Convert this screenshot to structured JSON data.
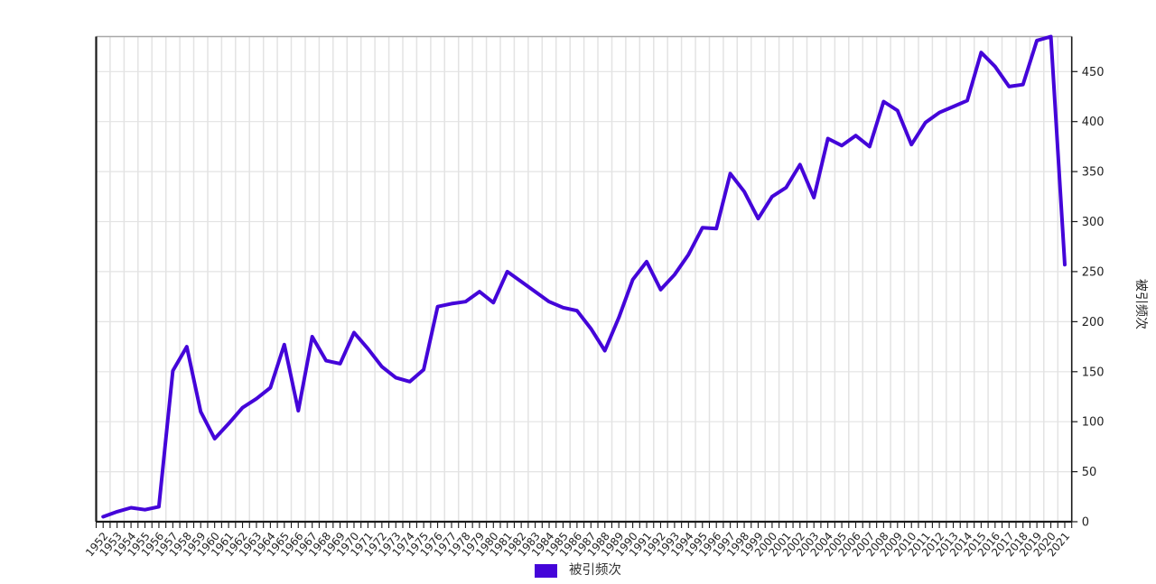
{
  "chart_data": {
    "type": "line",
    "title": "",
    "x": [
      "1952",
      "1953",
      "1954",
      "1955",
      "1956",
      "1957",
      "1958",
      "1959",
      "1960",
      "1961",
      "1962",
      "1963",
      "1964",
      "1965",
      "1966",
      "1967",
      "1968",
      "1969",
      "1970",
      "1971",
      "1972",
      "1973",
      "1974",
      "1975",
      "1976",
      "1977",
      "1978",
      "1979",
      "1980",
      "1981",
      "1982",
      "1983",
      "1984",
      "1985",
      "1986",
      "1987",
      "1988",
      "1989",
      "1990",
      "1991",
      "1992",
      "1993",
      "1994",
      "1995",
      "1996",
      "1997",
      "1998",
      "1999",
      "2000",
      "2001",
      "2002",
      "2003",
      "2004",
      "2005",
      "2006",
      "2007",
      "2008",
      "2009",
      "2010",
      "2011",
      "2012",
      "2013",
      "2014",
      "2015",
      "2016",
      "2017",
      "2018",
      "2019",
      "2020",
      "2021"
    ],
    "series": [
      {
        "name": "被引频次",
        "values": [
          5,
          10,
          14,
          12,
          15,
          151,
          175,
          110,
          83,
          98,
          114,
          123,
          134,
          177,
          111,
          185,
          161,
          158,
          189,
          173,
          155,
          144,
          140,
          152,
          215,
          218,
          220,
          230,
          219,
          250,
          240,
          230,
          220,
          214,
          211,
          193,
          171,
          204,
          242,
          260,
          232,
          247,
          267,
          294,
          293,
          348,
          330,
          303,
          325,
          334,
          357,
          324,
          383,
          376,
          386,
          375,
          420,
          411,
          377,
          399,
          409,
          415,
          421,
          469,
          455,
          435,
          437,
          481,
          485,
          257
        ]
      }
    ],
    "xlabel": "",
    "ylabel": "被引频次",
    "yticks": [
      0,
      50,
      100,
      150,
      200,
      250,
      300,
      350,
      400,
      450
    ],
    "ylim": [
      0,
      485
    ],
    "grid": true,
    "legend_position": "bottom-center",
    "legend": [
      "被引频次"
    ]
  },
  "colors": {
    "series": "#4405d9",
    "grid": "#e3e3e3",
    "axis": "#1a1a1a",
    "top_border": "#a8a8a8",
    "tick_label": "#222222",
    "legend_text": "#333333"
  },
  "layout_values": {
    "x_label_rotation_deg": -50
  }
}
